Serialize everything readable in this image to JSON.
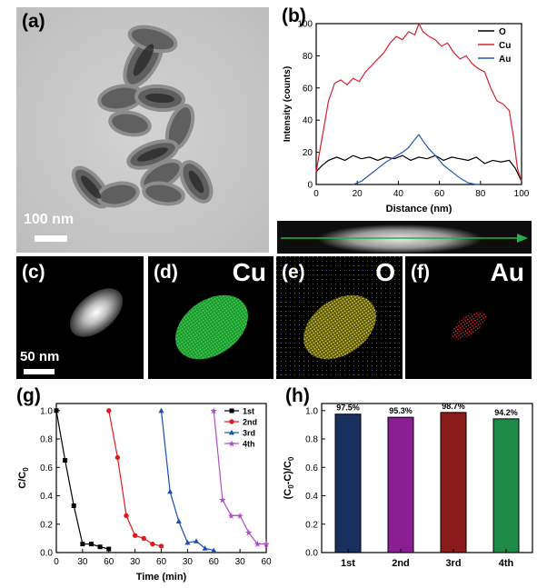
{
  "panels": {
    "a": {
      "label": "(a)",
      "scale_bar": "100 nm"
    },
    "b": {
      "label": "(b)"
    },
    "c": {
      "label": "(c)",
      "scale_bar": "50 nm"
    },
    "d": {
      "label": "(d)",
      "element": "Cu"
    },
    "e": {
      "label": "(e)",
      "element": "O"
    },
    "f": {
      "label": "(f)",
      "element": "Au"
    },
    "g": {
      "label": "(g)"
    },
    "h": {
      "label": "(h)"
    }
  },
  "colors": {
    "O": "#000000",
    "Cu": "#d4202a",
    "Au": "#1f57b8",
    "run1": "#000000",
    "run2": "#e01b1b",
    "run3": "#1a4fb5",
    "run4": "#b04cc8",
    "bar1": "#19305e",
    "bar2": "#8a1f93",
    "bar3": "#8b1a1a",
    "bar4": "#1e8a48",
    "arrow": "#22b14c"
  },
  "chart_data": [
    {
      "id": "b",
      "type": "line",
      "xlabel": "Distance (nm)",
      "ylabel": "Intensity (counts)",
      "xlim": [
        0,
        100
      ],
      "ylim": [
        0,
        100
      ],
      "xticks": [
        0,
        20,
        40,
        60,
        80,
        100
      ],
      "yticks": [
        0,
        20,
        40,
        60,
        80,
        100
      ],
      "legend_position": "top-right",
      "series": [
        {
          "name": "O",
          "x": [
            0,
            3,
            6,
            10,
            14,
            18,
            22,
            26,
            30,
            34,
            38,
            42,
            46,
            50,
            54,
            58,
            62,
            66,
            70,
            74,
            78,
            82,
            86,
            90,
            94,
            97,
            100
          ],
          "y": [
            8,
            12,
            15,
            17,
            15,
            18,
            16,
            17,
            15,
            17,
            16,
            18,
            15,
            17,
            16,
            18,
            15,
            17,
            16,
            15,
            17,
            13,
            15,
            14,
            15,
            10,
            2
          ]
        },
        {
          "name": "Cu",
          "x": [
            0,
            3,
            6,
            9,
            12,
            15,
            18,
            21,
            24,
            27,
            30,
            33,
            36,
            39,
            42,
            45,
            48,
            50,
            52,
            55,
            58,
            61,
            64,
            67,
            70,
            73,
            76,
            79,
            82,
            85,
            88,
            91,
            94,
            96,
            98,
            100
          ],
          "y": [
            8,
            30,
            52,
            63,
            65,
            62,
            66,
            64,
            70,
            74,
            78,
            82,
            88,
            92,
            90,
            95,
            93,
            100,
            95,
            92,
            90,
            86,
            88,
            82,
            78,
            80,
            75,
            72,
            70,
            60,
            52,
            50,
            46,
            30,
            10,
            2
          ]
        },
        {
          "name": "Au",
          "x": [
            18,
            22,
            26,
            30,
            34,
            38,
            42,
            45,
            48,
            50,
            52,
            55,
            58,
            62,
            66,
            70,
            74,
            78,
            80
          ],
          "y": [
            0,
            2,
            6,
            10,
            14,
            17,
            20,
            23,
            28,
            31,
            27,
            22,
            18,
            12,
            8,
            4,
            1,
            0,
            0
          ]
        }
      ]
    },
    {
      "id": "g",
      "type": "line",
      "xlabel": "Time (min)",
      "ylabel": "C/C0",
      "xlim": [
        0,
        240
      ],
      "ylim": [
        0,
        1.05
      ],
      "xtick_positions": [
        0,
        30,
        60,
        90,
        120,
        150,
        180,
        210,
        240
      ],
      "xtick_labels": [
        "0",
        "30",
        "60",
        "30",
        "60",
        "30",
        "60",
        "30",
        "60"
      ],
      "yticks": [
        0.0,
        0.2,
        0.4,
        0.6,
        0.8,
        1.0
      ],
      "ytick_labels": [
        "0.0",
        "0.2",
        "0.4",
        "0.6",
        "0.8",
        "1.0"
      ],
      "legend_position": "top-right",
      "series": [
        {
          "name": "1st",
          "marker": "square",
          "x": [
            0,
            10,
            20,
            30,
            40,
            50,
            60
          ],
          "y": [
            1.0,
            0.65,
            0.33,
            0.06,
            0.06,
            0.04,
            0.025
          ]
        },
        {
          "name": "2nd",
          "marker": "circle",
          "x": [
            60,
            70,
            80,
            90,
            100,
            110,
            120
          ],
          "y": [
            1.0,
            0.67,
            0.26,
            0.12,
            0.1,
            0.06,
            0.045
          ]
        },
        {
          "name": "3rd",
          "marker": "triangle",
          "x": [
            120,
            130,
            140,
            150,
            160,
            170,
            180
          ],
          "y": [
            1.0,
            0.43,
            0.22,
            0.07,
            0.08,
            0.03,
            0.015
          ]
        },
        {
          "name": "4th",
          "marker": "star",
          "x": [
            180,
            190,
            200,
            210,
            220,
            230,
            240
          ],
          "y": [
            1.0,
            0.37,
            0.26,
            0.26,
            0.14,
            0.06,
            0.06
          ]
        }
      ]
    },
    {
      "id": "h",
      "type": "bar",
      "ylabel": "(C0-C)/C0",
      "categories": [
        "1st",
        "2nd",
        "3rd",
        "4th"
      ],
      "values": [
        0.975,
        0.953,
        0.987,
        0.942
      ],
      "data_labels": [
        "97.5%",
        "95.3%",
        "98.7%",
        "94.2%"
      ],
      "ylim": [
        0,
        1.05
      ],
      "yticks": [
        0.0,
        0.2,
        0.4,
        0.6,
        0.8,
        1.0
      ],
      "ytick_labels": [
        "0.0",
        "0.2",
        "0.4",
        "0.6",
        "0.8",
        "1.0"
      ]
    }
  ]
}
